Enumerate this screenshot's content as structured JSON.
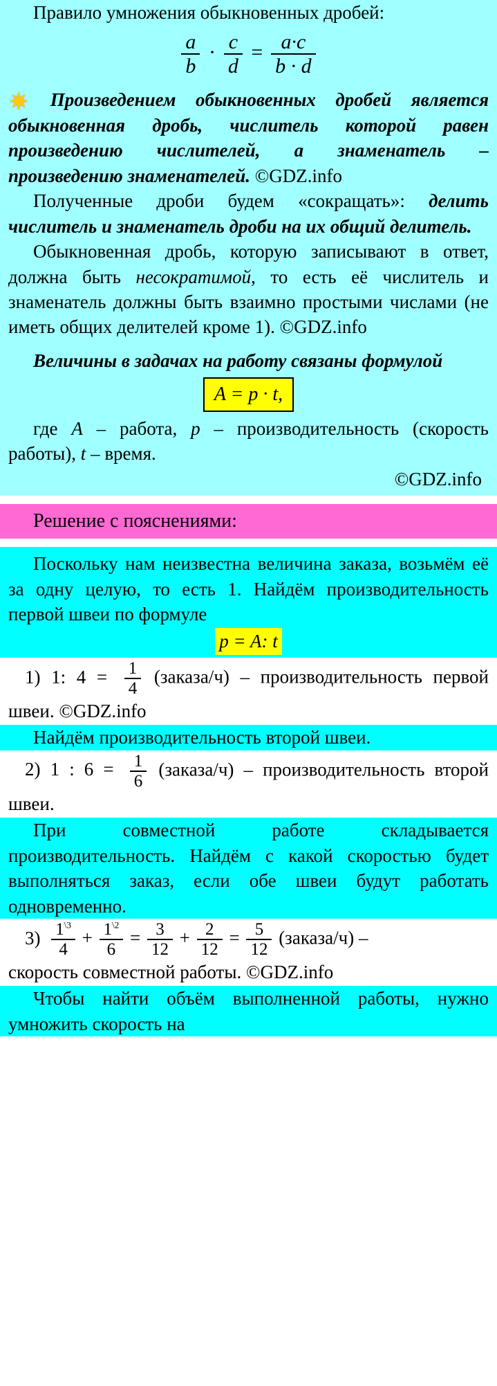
{
  "watermark_text": "GDZ.INFO",
  "logo_text": "GDZ",
  "block1": {
    "p1": "Правило умножения обыкновенных дробей:",
    "formula": {
      "a": "a",
      "b": "b",
      "c": "c",
      "d": "d",
      "ac": "a·c",
      "bd": "b · d"
    },
    "rule": "Произведением обыкновенных дробей является обыкновенная дробь, числитель которой равен произведению числи­телей, а знаменатель – произведению знаменателей.",
    "copyright": " ©GDZ.info",
    "p2a": "Полученные дроби будем «сокращать»: ",
    "p2b": "делить числитель и знаменатель дроби на их общий делитель.",
    "p3a": "Обыкновенная дробь, которую записывают в ответ, должна быть ",
    "p3word": "несократимой",
    "p3b": ", то есть её числитель и знаменатель должны быть взаимно простыми числами (не иметь общих делителей кроме 1). ©GDZ.info",
    "p4": "Величины в задачах на работу связаны формулой",
    "formula_box": "A = p · t,",
    "p5a": "где ",
    "p5A": "A",
    "p5b": " – работа, ",
    "p5p": "p",
    "p5c": " – производитель­ность (скорость работы), ",
    "p5t": "t",
    "p5d": " – время.",
    "copy2": "©GDZ.info"
  },
  "heading": "Решение с пояснениями:",
  "block2": {
    "intro": "Поскольку нам неизвестна величина заказа, возьмём её за одну целую, то есть 1. Найдём производительность первой швеи по формуле",
    "formula_p": "p = A: t",
    "step1_label": "1) 1: 4 = ",
    "step1_frac": {
      "num": "1",
      "den": "4"
    },
    "step1_text": " (заказа/ч) – производитель­ность первой швеи. ©GDZ.info",
    "p_find2": "Найдём производительность второй швеи.",
    "step2_label": "2) 1 : 6 =",
    "step2_frac": {
      "num": "1",
      "den": "6"
    },
    "step2_text": " (заказа/ч) – производитель­ность второй швеи.",
    "p_joint": "При совместной работе складывается производительность. Найдём с какой скоростью будет выполняться заказ, если обе швеи будут работать одновременно.",
    "step3_label": "3)  ",
    "step3_f1": {
      "num": "1",
      "den": "4",
      "sup": "\\3"
    },
    "step3_plus": " + ",
    "step3_f2": {
      "num": "1",
      "den": "6",
      "sup": "\\2"
    },
    "step3_eq": " = ",
    "step3_f3": {
      "num": "3",
      "den": "12"
    },
    "step3_plus2": " + ",
    "step3_f4": {
      "num": "2",
      "den": "12"
    },
    "step3_eq2": " = ",
    "step3_f5": {
      "num": "5",
      "den": "12"
    },
    "step3_text_a": "  (заказа/ч)  –",
    "step3_text_b": "скорость совместной работы. ©GDZ.info",
    "p_last": "Чтобы найти объём выполненной работы, нужно умножить скорость на"
  },
  "colors": {
    "cyan_light": "#a0ffff",
    "cyan_bright": "#00ffff",
    "pink": "#ff69d4",
    "yellow": "#ffff00"
  }
}
